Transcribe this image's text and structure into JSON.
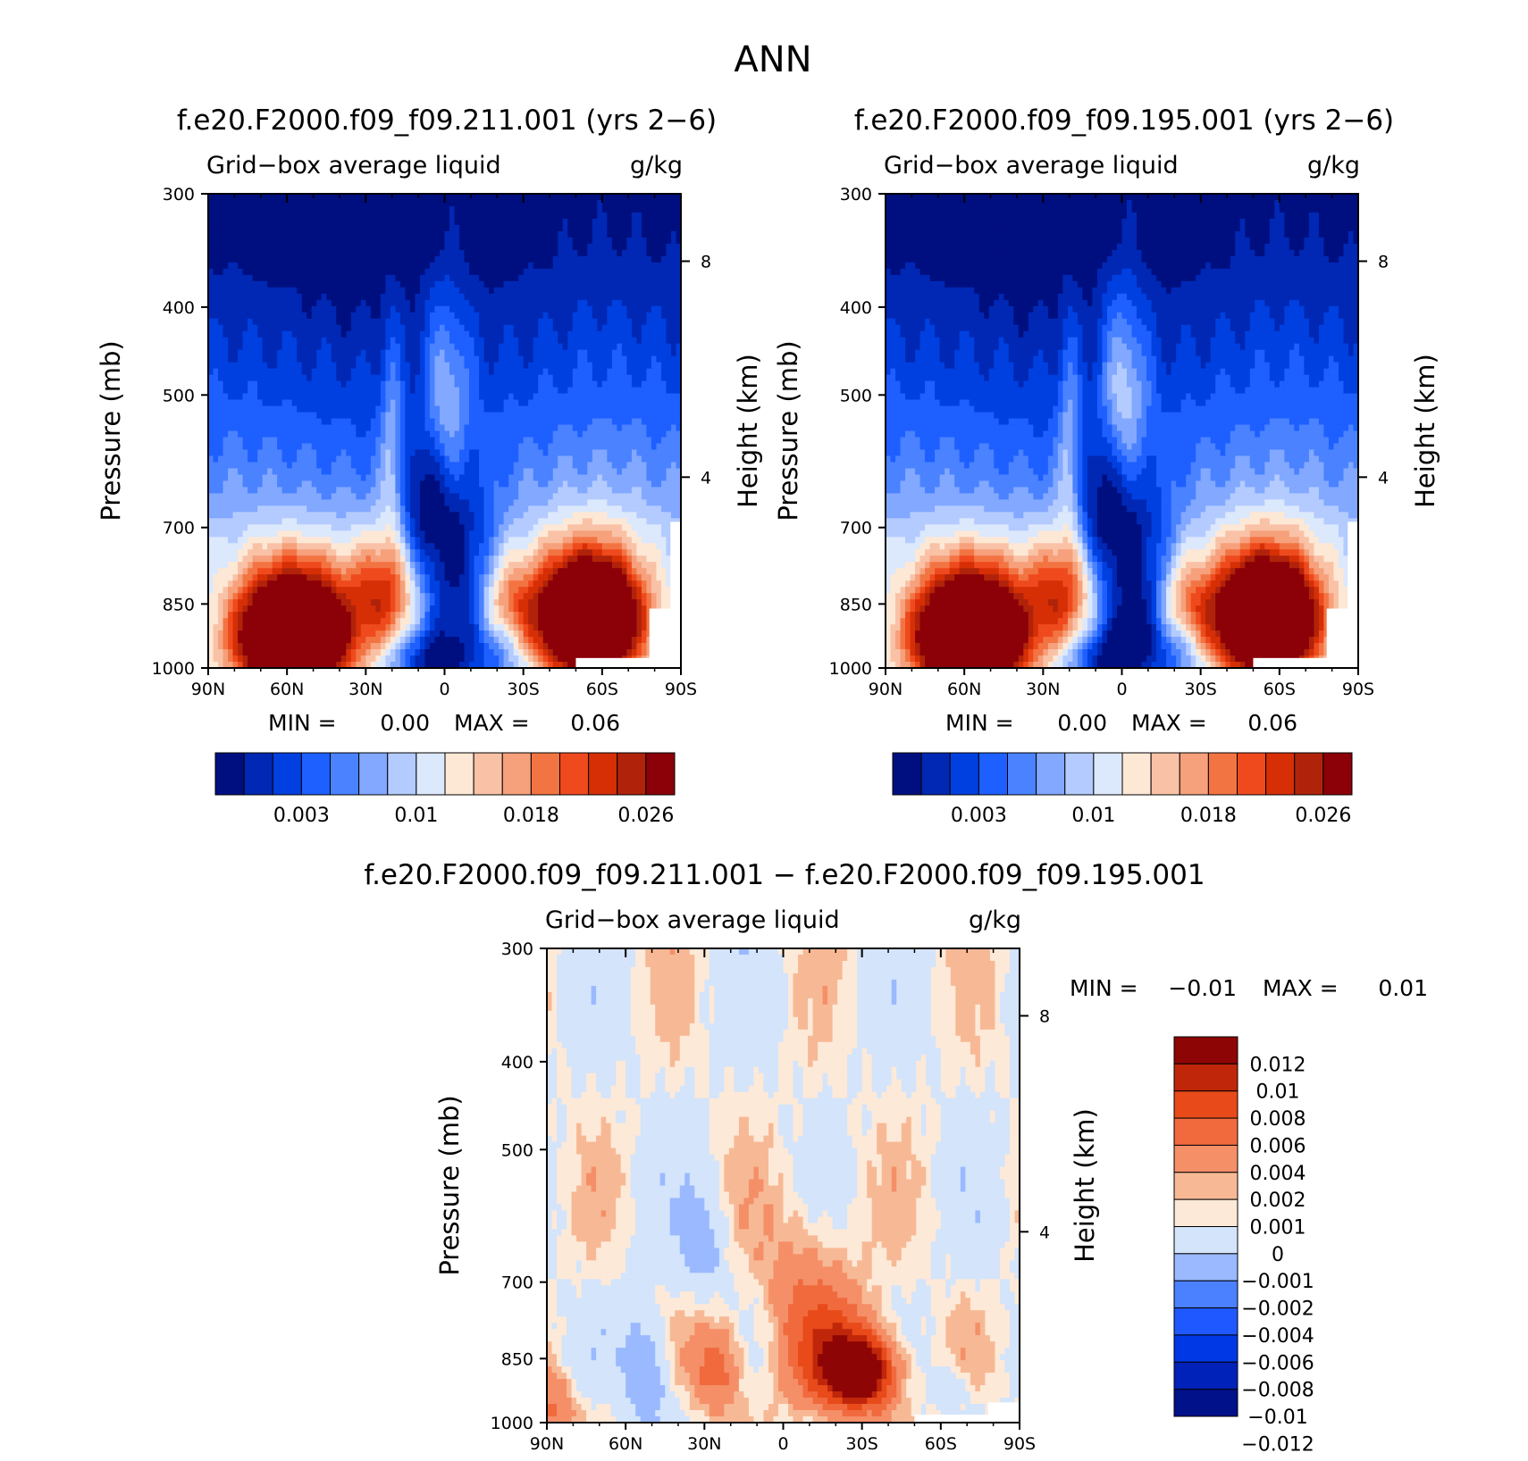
{
  "figure": {
    "title": "ANN"
  },
  "colors": {
    "abs_levels": [
      "#000f80",
      "#0028b4",
      "#0040e0",
      "#1e5fff",
      "#4a82ff",
      "#82a8ff",
      "#b4cbff",
      "#dce8fb",
      "#fde8d6",
      "#f9c2a6",
      "#f6a07c",
      "#f37443",
      "#ef4a1e",
      "#d62f06",
      "#b0230a",
      "#8c0008"
    ],
    "diff_levels": [
      "#00118a",
      "#0022b8",
      "#0038e6",
      "#2058ff",
      "#4b80ff",
      "#9ab9ff",
      "#d3e4fb",
      "#fde9d8",
      "#f7b995",
      "#f58f68",
      "#f06a3e",
      "#e84a1a",
      "#c0270a",
      "#8e0506"
    ]
  },
  "chart_data": [
    {
      "type": "heatmap",
      "panel": "top-left",
      "title": "f.e20.F2000.f09_f09.211.001 (yrs 2−6)",
      "subtitle_left": "Grid−box average liquid",
      "subtitle_right": "g/kg",
      "ylabel": "Pressure (mb)",
      "ylabel_right": "Height (km)",
      "xticks": [
        "90N",
        "60N",
        "30N",
        "0",
        "30S",
        "60S",
        "90S"
      ],
      "yticks": [
        "300",
        "400",
        "500",
        "700",
        "850",
        "1000"
      ],
      "yticks_right": [
        "8",
        "4"
      ],
      "ylim": [
        1000,
        300
      ],
      "min_label": "MIN =",
      "min_value": "0.00",
      "max_label": "MAX =",
      "max_value": "0.06",
      "colorbar_labels": [
        "0.003",
        "0.01",
        "0.018",
        "0.026"
      ]
    },
    {
      "type": "heatmap",
      "panel": "top-right",
      "title": "f.e20.F2000.f09_f09.195.001 (yrs 2−6)",
      "subtitle_left": "Grid−box average liquid",
      "subtitle_right": "g/kg",
      "ylabel": "Pressure (mb)",
      "ylabel_right": "Height (km)",
      "xticks": [
        "90N",
        "60N",
        "30N",
        "0",
        "30S",
        "60S",
        "90S"
      ],
      "yticks": [
        "300",
        "400",
        "500",
        "700",
        "850",
        "1000"
      ],
      "yticks_right": [
        "8",
        "4"
      ],
      "ylim": [
        1000,
        300
      ],
      "min_label": "MIN =",
      "min_value": "0.00",
      "max_label": "MAX =",
      "max_value": "0.06",
      "colorbar_labels": [
        "0.003",
        "0.01",
        "0.018",
        "0.026"
      ]
    },
    {
      "type": "heatmap",
      "panel": "bottom",
      "title": "f.e20.F2000.f09_f09.211.001 − f.e20.F2000.f09_f09.195.001",
      "subtitle_left": "Grid−box average liquid",
      "subtitle_right": "g/kg",
      "ylabel": "Pressure (mb)",
      "ylabel_right": "Height (km)",
      "xticks": [
        "90N",
        "60N",
        "30N",
        "0",
        "30S",
        "60S",
        "90S"
      ],
      "yticks": [
        "300",
        "400",
        "500",
        "700",
        "850",
        "1000"
      ],
      "yticks_right": [
        "8",
        "4"
      ],
      "ylim": [
        1000,
        300
      ],
      "min_label": "MIN =",
      "min_value": "−0.01",
      "max_label": "MAX =",
      "max_value": "0.01",
      "colorbar_labels": [
        "0.012",
        "0.01",
        "0.008",
        "0.006",
        "0.004",
        "0.002",
        "0.001",
        "0",
        "−0.001",
        "−0.002",
        "−0.004",
        "−0.006",
        "−0.008",
        "−0.01",
        "−0.012"
      ]
    }
  ]
}
